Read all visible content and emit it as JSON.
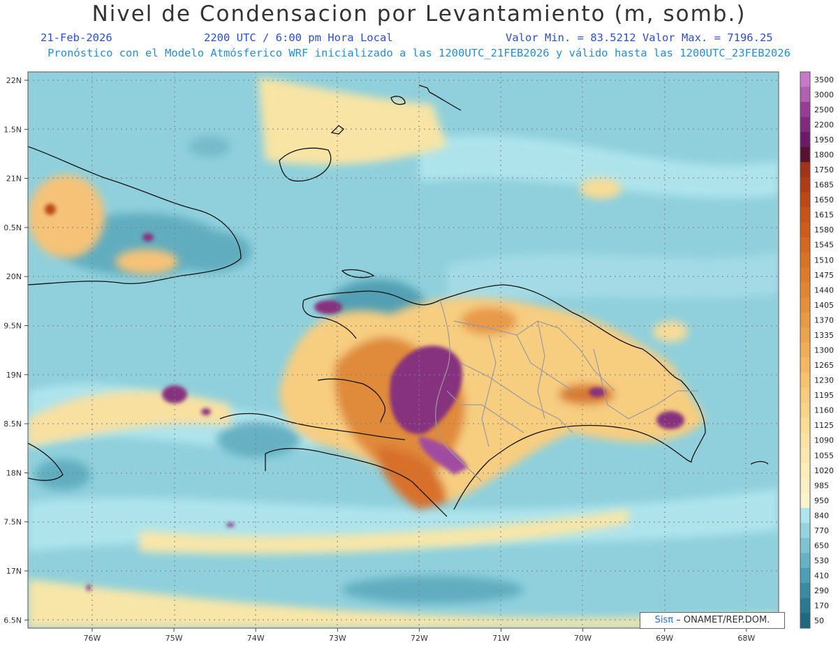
{
  "header": {
    "title": "Nivel de Condensacion por Levantamiento (m, somb.)",
    "date": "21-Feb-2026",
    "time": "2200 UTC / 6:00 pm Hora Local",
    "minmax": "Valor Min. = 83.5212  Valor Max. = 7196.25",
    "model_info": "Pronóstico con el Modelo Atmósferico WRF inicializado a las 1200UTC_21FEB2026 y válido hasta las  1200UTC_23FEB2026"
  },
  "axes": {
    "lat_labels": [
      "22N",
      "1.5N",
      "21N",
      "0.5N",
      "20N",
      "9.5N",
      "19N",
      "8.5N",
      "18N",
      "7.5N",
      "17N",
      "6.5N"
    ],
    "lon_labels": [
      "76W",
      "75W",
      "74W",
      "73W",
      "72W",
      "71W",
      "70W",
      "69W",
      "68W"
    ]
  },
  "colorbar": {
    "labels": [
      "3500",
      "3000",
      "2500",
      "2200",
      "1950",
      "1800",
      "1750",
      "1685",
      "1650",
      "1615",
      "1580",
      "1545",
      "1510",
      "1475",
      "1440",
      "1405",
      "1370",
      "1335",
      "1300",
      "1265",
      "1230",
      "1195",
      "1160",
      "1125",
      "1090",
      "1055",
      "1020",
      "985",
      "950",
      "840",
      "770",
      "650",
      "530",
      "410",
      "290",
      "170",
      "50"
    ],
    "colors": [
      "#c878c8",
      "#b060b0",
      "#983c98",
      "#802a7e",
      "#6c1a68",
      "#5a1030",
      "#a03418",
      "#b03c16",
      "#bc4818",
      "#c65418",
      "#cc5c1c",
      "#d46820",
      "#d87226",
      "#dc7c2a",
      "#e08632",
      "#e4903a",
      "#e89a42",
      "#ec a44c",
      "#f0ae56",
      "#f4b862",
      "#f6c26e",
      "#f8cc7c",
      "#f8d488",
      "#fadc96",
      "#fae2a2",
      "#fae8ae",
      "#fbecb8",
      "#fbf0c2",
      "#fbf4cc",
      "#aee4ec",
      "#94d4e0",
      "#7cc4d4",
      "#64b2c4",
      "#4c9eb4",
      "#3a8aa2",
      "#2c7890",
      "#1f6880"
    ]
  },
  "footer": {
    "badge_brand": "Sisπ",
    "badge_org": "– ONAMET/REP.DOM."
  }
}
